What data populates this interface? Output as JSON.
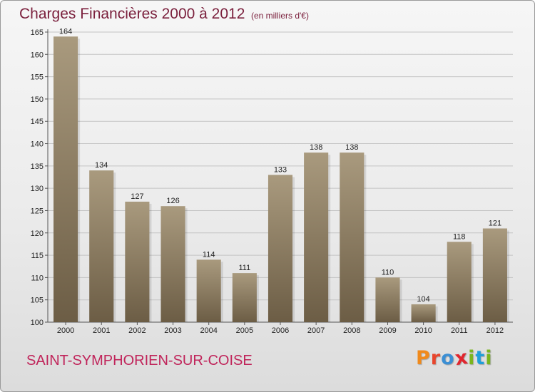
{
  "header": {
    "title": "Charges Financières 2000 à 2012",
    "subtitle": "(en milliers d'€)"
  },
  "footer": {
    "commune": "SAINT-SYMPHORIEN-SUR-COISE",
    "brand": {
      "letters": [
        "P",
        "r",
        "o",
        "x",
        "i",
        "t",
        "i"
      ],
      "colors": [
        "#f08a1c",
        "#e8452c",
        "#3b8fd4",
        "#e0262e",
        "#7ab51d",
        "#1f9fd9",
        "#7ab51d"
      ]
    }
  },
  "chart_data": {
    "type": "bar",
    "title": "Charges Financières 2000 à 2012",
    "subtitle": "(en milliers d'€)",
    "categories": [
      "2000",
      "2001",
      "2002",
      "2003",
      "2004",
      "2005",
      "2006",
      "2007",
      "2008",
      "2009",
      "2010",
      "2011",
      "2012"
    ],
    "values": [
      164,
      134,
      127,
      126,
      114,
      111,
      133,
      138,
      138,
      110,
      104,
      118,
      121
    ],
    "data_labels": [
      "164",
      "134",
      "127",
      "126",
      "114",
      "111",
      "133",
      "138",
      "138",
      "110",
      "104",
      "118",
      "121"
    ],
    "yticks": [
      100,
      105,
      110,
      115,
      120,
      125,
      130,
      135,
      140,
      145,
      150,
      155,
      160,
      165
    ],
    "ylim": [
      100,
      165
    ],
    "grid": true,
    "bar_color_light": "#a99a7e",
    "bar_color_dark": "#6c5d45"
  }
}
